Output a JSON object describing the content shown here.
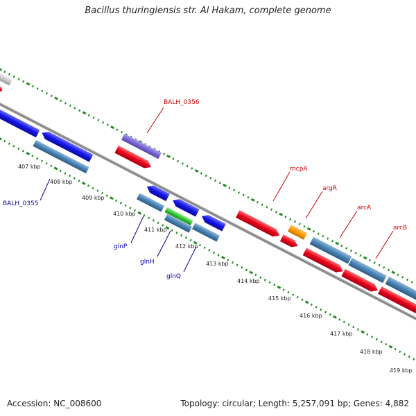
{
  "title": "Bacillus thuringiensis str. Al Hakam, complete genome",
  "footer": {
    "accession": "Accession: NC_008600",
    "summary": "Topology: circular; Length: 5,257,091 bp; Genes: 4,882"
  },
  "colors": {
    "backbone": "#8c8c8c",
    "tick": "#1e8c1e",
    "label_forward": "#cc0000",
    "label_reverse": "#000099",
    "red": "#e8001a",
    "blue": "#1414e6",
    "steelblue": "#4682b4",
    "purple": "#7b68d6",
    "green": "#32c832",
    "orange": "#ff9900",
    "gray": "#c8c8c8"
  },
  "kbp_labels": [
    "407 kbp",
    "408 kbp",
    "409 kbp",
    "410 kbp",
    "411 kbp",
    "412 kbp",
    "413 kbp",
    "414 kbp",
    "415 kbp",
    "416 kbp",
    "417 kbp",
    "418 kbp",
    "419 kbp"
  ],
  "gene_labels_forward": [
    "BALH_0356",
    "mcpA",
    "argR",
    "arcA",
    "arcB"
  ],
  "gene_labels_reverse": [
    "BALH_0355",
    "glnP",
    "glnH",
    "glnQ"
  ]
}
